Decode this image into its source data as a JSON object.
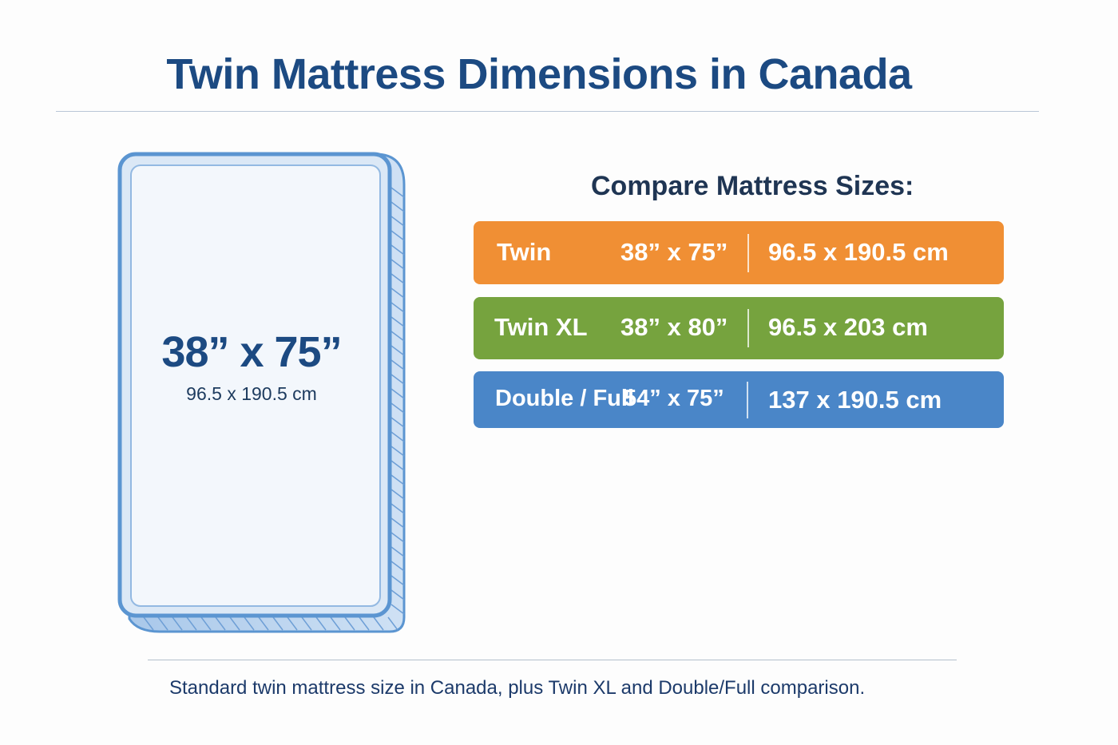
{
  "title": "Twin Mattress Dimensions in Canada",
  "mattress": {
    "size_imperial": "38” x 75”",
    "size_metric": "96.5 x 190.5 cm"
  },
  "compare": {
    "heading": "Compare Mattress Sizes:",
    "rows": [
      {
        "name": "Twin",
        "imperial": "38” x 75”",
        "metric": "96.5 x 190.5 cm",
        "color": "#f08f34"
      },
      {
        "name": "Twin XL",
        "imperial": "38” x 80”",
        "metric": "96.5 x 203 cm",
        "color": "#76a33e"
      },
      {
        "name": "Double / Full",
        "imperial": "54” x 75”",
        "metric": "137 x 190.5 cm",
        "color": "#4a86c8"
      }
    ]
  },
  "caption": "Standard twin mattress size in Canada, plus Twin XL and Double/Full comparison.",
  "colors": {
    "title": "#1c4a82",
    "mattress_outline": "#5b95d1",
    "mattress_fill": "#eef4fb"
  }
}
